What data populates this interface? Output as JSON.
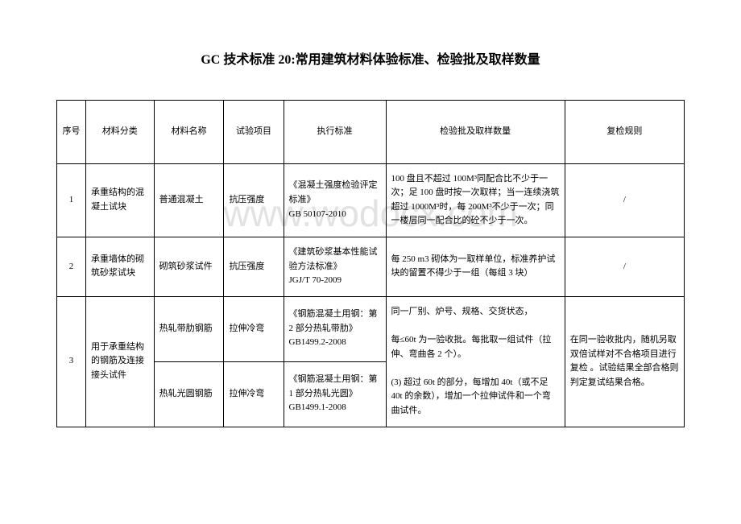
{
  "title": "GC 技术标准 20:常用建筑材料体验标准、检验批及取样数量",
  "watermark": "www.wodocx.com",
  "header": {
    "seq": "序号",
    "category": "材料分类",
    "name": "材料名称",
    "test": "试验项目",
    "standard": "执行标准",
    "batch": "检验批及取样数量",
    "recheck": "复检规则"
  },
  "rows": [
    {
      "seq": "1",
      "category": "承重结构的混凝土试块",
      "name": "普通混凝土",
      "test": "抗压强度",
      "standard": "《混凝土强度检验评定标准》\nGB 50107-2010",
      "batch": "100 盘且不超过 100M³同配合比不少于一次；足 100 盘时按一次取样；当一连续浇筑超过 1000M³时，每 200M³不少于一次；同一楼层同一配合比的砼不少于一次。",
      "recheck": "/"
    },
    {
      "seq": "2",
      "category": "承重墙体的砌筑砂浆试块",
      "name": "砌筑砂浆试件",
      "test": "抗压强度",
      "standard": "《建筑砂浆基本性能试验方法标准》\nJGJ/T 70-2009",
      "batch": "每 250 m3 砌体为一取样单位，标准养护试块的留置不得少于一组（每组 3 块）",
      "recheck": "/"
    },
    {
      "seq": "3",
      "category": "用于承重结构的钢筋及连接接头试件",
      "sub": [
        {
          "name": "热轧带肋钢筋",
          "test": "拉伸冷弯",
          "standard": "《钢筋混凝土用钢：第 2 部分热轧带肋》GB1499.2-2008"
        },
        {
          "name": "热轧光圆钢筋",
          "test": "拉伸冷弯",
          "standard": "《钢筋混凝土用钢：第 1 部分热轧光圆》GB1499.1-2008"
        }
      ],
      "batch": "同一厂别、炉号、规格、交货状态，\n\n每≤60t 为一验收批。每批取一组试件（拉伸、弯曲各 2 个）。\n\n(3) 超过 60t 的部分，每增加 40t（或不足 40t 的余数），增加一个拉伸试件和一个弯曲试件。",
      "recheck": "在同一验收批内，随机另取双倍试样对不合格项目进行复检 。试验结果全部合格则判定复试结果合格。"
    }
  ]
}
